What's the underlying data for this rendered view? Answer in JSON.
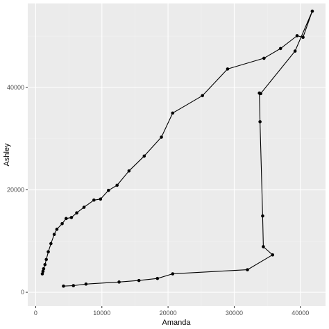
{
  "chart_data": {
    "type": "line",
    "title": "",
    "xlabel": "Amanda",
    "ylabel": "Ashley",
    "xlim": [
      -1200,
      43800
    ],
    "ylim": [
      -2700,
      56400
    ],
    "xticks": [
      0,
      10000,
      20000,
      30000,
      40000
    ],
    "xtick_labels": [
      "0",
      "10000",
      "20000",
      "30000",
      "40000"
    ],
    "yticks": [
      0,
      20000,
      40000
    ],
    "ytick_labels": [
      "0",
      "20000",
      "40000"
    ],
    "grid": true,
    "legend": "none",
    "colors": {
      "panel_background": "#ebebeb",
      "grid_major": "#ffffff",
      "grid_minor": "#f2f2f2",
      "line": "#000000",
      "point": "#000000",
      "tick_label": "#4d4d4d",
      "tick_mark": "#333333"
    },
    "series": [
      {
        "x": [
          4200,
          5700,
          7600,
          12600,
          15600,
          18400,
          20700,
          32000,
          35800,
          34400,
          34300,
          33900,
          33800,
          34000,
          39200,
          41800,
          40400,
          39500,
          37000,
          34500,
          29000,
          25200,
          20700,
          19000,
          16400,
          14100,
          12300,
          11000,
          9800,
          8800,
          7300,
          6200,
          5400,
          4600,
          4000,
          3200,
          2800,
          2300,
          1900,
          1600,
          1400,
          1200,
          1100,
          1000
        ],
        "y": [
          1200,
          1300,
          1600,
          2000,
          2300,
          2700,
          3600,
          4400,
          7300,
          8900,
          14900,
          33300,
          38900,
          38800,
          47100,
          54900,
          49800,
          50100,
          47600,
          45700,
          43600,
          38400,
          35000,
          30300,
          26600,
          23700,
          20900,
          19900,
          18200,
          18000,
          16600,
          15500,
          14600,
          14400,
          13400,
          12300,
          11300,
          9500,
          7900,
          6400,
          5400,
          4600,
          4100,
          3600
        ]
      }
    ]
  }
}
